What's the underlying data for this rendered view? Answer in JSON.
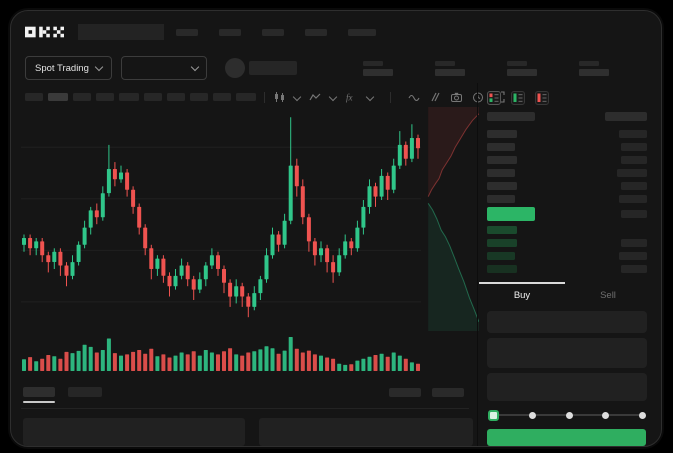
{
  "app": {
    "logo_label": "OKX"
  },
  "colors": {
    "up": "#30c68a",
    "down": "#ef5350",
    "book_price_up": "#2cb566",
    "accent_button": "#2fae60",
    "tab_indicator": "#d9d9d9"
  },
  "header": {
    "nav_item_widths": [
      22,
      22,
      22,
      22,
      28
    ]
  },
  "subnav": {
    "market_selector_label": "Spot Trading",
    "stat_pair_count": 4
  },
  "chart_toolbar": {
    "timeframe_widths": [
      18,
      20,
      18,
      18,
      20,
      18,
      18,
      18,
      18,
      20
    ],
    "active_index": 1,
    "icons": [
      "candle-type-icon",
      "chevron-down-icon",
      "ma-indicator-icon",
      "chevron-down-icon",
      "fx-indicators-icon",
      "chevron-down-icon",
      "wave-icon",
      "compare-icon",
      "camera-icon",
      "clock-icon",
      "fullscreen-icon"
    ]
  },
  "chart_data": {
    "type": "candlestick",
    "title": "",
    "xlabel": "",
    "ylabel": "",
    "grid": true,
    "ylim": [
      30,
      95
    ],
    "candles_format": [
      "open",
      "high",
      "low",
      "close"
    ],
    "candles": [
      [
        55,
        58,
        53,
        57
      ],
      [
        57,
        58,
        52,
        54
      ],
      [
        54,
        57,
        52,
        56
      ],
      [
        56,
        57,
        50,
        52
      ],
      [
        52,
        53,
        47,
        50
      ],
      [
        50,
        54,
        48,
        53
      ],
      [
        53,
        54,
        46,
        49
      ],
      [
        49,
        50,
        43,
        46
      ],
      [
        46,
        52,
        45,
        50
      ],
      [
        50,
        56,
        49,
        55
      ],
      [
        55,
        62,
        54,
        60
      ],
      [
        60,
        66,
        58,
        65
      ],
      [
        65,
        67,
        61,
        63
      ],
      [
        63,
        72,
        62,
        70
      ],
      [
        70,
        84,
        69,
        77
      ],
      [
        77,
        79,
        72,
        74
      ],
      [
        74,
        78,
        73,
        76
      ],
      [
        76,
        77,
        69,
        71
      ],
      [
        71,
        72,
        64,
        66
      ],
      [
        66,
        67,
        58,
        60
      ],
      [
        60,
        61,
        52,
        54
      ],
      [
        54,
        55,
        45,
        48
      ],
      [
        48,
        52,
        46,
        51
      ],
      [
        51,
        52,
        44,
        46
      ],
      [
        46,
        47,
        40,
        43
      ],
      [
        43,
        48,
        42,
        46
      ],
      [
        46,
        51,
        45,
        49
      ],
      [
        49,
        50,
        43,
        45
      ],
      [
        45,
        46,
        39,
        42
      ],
      [
        42,
        47,
        41,
        45
      ],
      [
        45,
        50,
        43,
        49
      ],
      [
        49,
        54,
        48,
        52
      ],
      [
        52,
        53,
        46,
        48
      ],
      [
        48,
        49,
        41,
        44
      ],
      [
        44,
        45,
        37,
        40
      ],
      [
        40,
        45,
        38,
        43
      ],
      [
        43,
        44,
        37,
        40
      ],
      [
        40,
        41,
        34,
        37
      ],
      [
        37,
        43,
        36,
        41
      ],
      [
        41,
        46,
        39,
        45
      ],
      [
        45,
        54,
        44,
        52
      ],
      [
        52,
        60,
        51,
        58
      ],
      [
        58,
        59,
        53,
        55
      ],
      [
        55,
        64,
        54,
        62
      ],
      [
        62,
        92,
        61,
        78
      ],
      [
        78,
        80,
        69,
        72
      ],
      [
        72,
        74,
        61,
        63
      ],
      [
        63,
        64,
        53,
        56
      ],
      [
        56,
        57,
        49,
        52
      ],
      [
        52,
        56,
        50,
        54
      ],
      [
        54,
        55,
        47,
        50
      ],
      [
        50,
        52,
        44,
        47
      ],
      [
        47,
        54,
        46,
        52
      ],
      [
        52,
        58,
        51,
        56
      ],
      [
        56,
        57,
        52,
        54
      ],
      [
        54,
        62,
        53,
        60
      ],
      [
        60,
        68,
        58,
        66
      ],
      [
        66,
        74,
        64,
        72
      ],
      [
        72,
        73,
        66,
        69
      ],
      [
        69,
        77,
        68,
        75
      ],
      [
        75,
        76,
        68,
        71
      ],
      [
        71,
        80,
        70,
        78
      ],
      [
        78,
        88,
        77,
        84
      ],
      [
        84,
        85,
        78,
        80
      ],
      [
        80,
        90,
        79,
        86
      ],
      [
        86,
        87,
        80,
        83
      ]
    ],
    "volume": [
      28,
      35,
      22,
      30,
      42,
      38,
      30,
      52,
      48,
      55,
      75,
      68,
      50,
      58,
      95,
      48,
      40,
      44,
      52,
      58,
      46,
      62,
      38,
      44,
      34,
      40,
      50,
      44,
      54,
      40,
      58,
      50,
      44,
      54,
      64,
      44,
      40,
      50,
      54,
      60,
      70,
      64,
      46,
      56,
      100,
      62,
      50,
      56,
      44,
      40,
      34,
      30,
      14,
      10,
      12,
      24,
      30,
      36,
      42,
      46,
      36,
      50,
      40,
      30,
      18,
      14
    ],
    "depth": {
      "asks": [
        [
          0.06,
          0.4
        ],
        [
          0.12,
          0.37
        ],
        [
          0.2,
          0.34
        ],
        [
          0.26,
          0.32
        ],
        [
          0.32,
          0.28
        ],
        [
          0.4,
          0.25
        ],
        [
          0.48,
          0.22
        ],
        [
          0.56,
          0.18
        ],
        [
          0.66,
          0.14
        ],
        [
          0.76,
          0.1
        ],
        [
          0.88,
          0.06
        ],
        [
          1,
          0.03
        ]
      ],
      "bids": [
        [
          0.06,
          0.43
        ],
        [
          0.14,
          0.46
        ],
        [
          0.22,
          0.5
        ],
        [
          0.3,
          0.55
        ],
        [
          0.38,
          0.58
        ],
        [
          0.46,
          0.62
        ],
        [
          0.54,
          0.67
        ],
        [
          0.62,
          0.72
        ],
        [
          0.72,
          0.78
        ],
        [
          0.82,
          0.85
        ],
        [
          0.92,
          0.91
        ],
        [
          1,
          0.96
        ]
      ]
    }
  },
  "order_book": {
    "view_icons": [
      "book-combined-icon",
      "book-bids-icon",
      "book-asks-icon"
    ],
    "active_view": 0,
    "header_widths": [
      48,
      42
    ],
    "ask_rows": [
      [
        30,
        28
      ],
      [
        28,
        26
      ],
      [
        30,
        26
      ],
      [
        28,
        30
      ],
      [
        30,
        26
      ],
      [
        28,
        28
      ]
    ],
    "price_row": {
      "width": 48,
      "amount_width": 26
    },
    "bid_rows": [
      [
        30,
        0
      ],
      [
        30,
        26
      ],
      [
        28,
        28
      ],
      [
        30,
        26
      ]
    ]
  },
  "trade_panel": {
    "tabs": [
      {
        "label": "Buy",
        "active": true
      },
      {
        "label": "Sell",
        "active": false
      }
    ],
    "field_heights": [
      22,
      30,
      28
    ],
    "slider_stop_count": 5,
    "active_stop": 0,
    "submit_label": ""
  },
  "bottom_panel": {
    "tab_widths": [
      32,
      34
    ],
    "active_tab": 0,
    "action_button_count": 2,
    "content_panel_widths": [
      222,
      214
    ]
  }
}
